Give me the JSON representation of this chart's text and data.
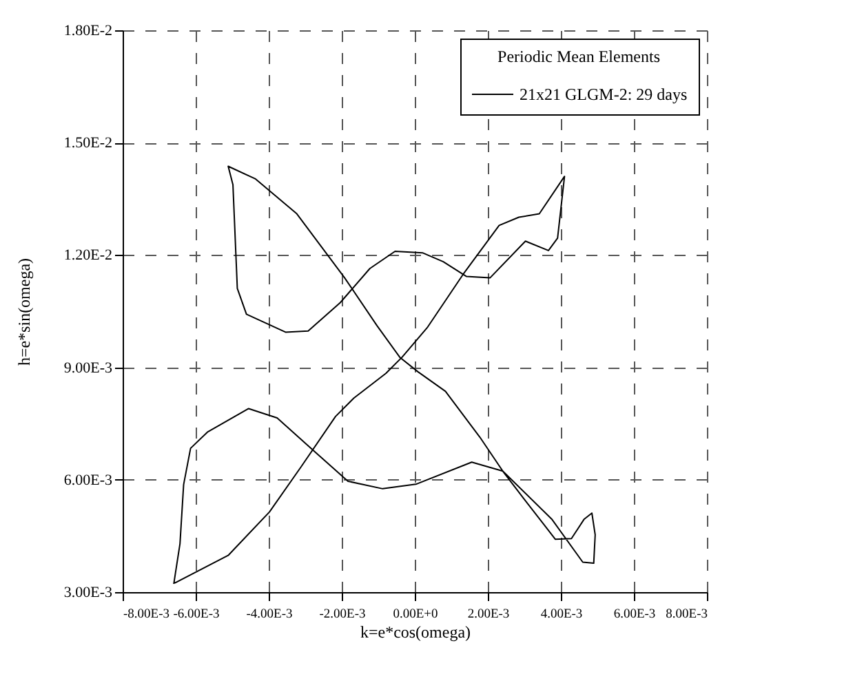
{
  "chart_data": {
    "type": "line",
    "xlabel": "k=e*cos(omega)",
    "ylabel": "h=e*sin(omega)",
    "legend_title": "Periodic Mean Elements",
    "legend": "top right",
    "grid": true,
    "xlim": [
      -0.008,
      0.008
    ],
    "ylim": [
      0.003,
      0.018
    ],
    "xticks": [
      {
        "value": -0.008,
        "label": "-8.00E-3"
      },
      {
        "value": -0.006,
        "label": "-6.00E-3"
      },
      {
        "value": -0.004,
        "label": "-4.00E-3"
      },
      {
        "value": -0.002,
        "label": "-2.00E-3"
      },
      {
        "value": 0,
        "label": "0.00E+0"
      },
      {
        "value": 0.002,
        "label": "2.00E-3"
      },
      {
        "value": 0.004,
        "label": "4.00E-3"
      },
      {
        "value": 0.006,
        "label": "6.00E-3"
      },
      {
        "value": 0.008,
        "label": "8.00E-3"
      }
    ],
    "yticks": [
      {
        "value": 0.003,
        "label": "3.00E-3"
      },
      {
        "value": 0.006,
        "label": "6.00E-3"
      },
      {
        "value": 0.009,
        "label": "9.00E-3"
      },
      {
        "value": 0.012,
        "label": "1.20E-2"
      },
      {
        "value": 0.015,
        "label": "1.50E-2"
      },
      {
        "value": 0.018,
        "label": "1.80E-2"
      }
    ],
    "series": [
      {
        "name": "21x21 GLGM-2: 29 days",
        "color": "#000000",
        "x": [
          -0.0066,
          -0.00643,
          -0.00633,
          -0.00614,
          -0.00568,
          -0.00455,
          -0.00377,
          -0.00273,
          -0.00183,
          -0.00088,
          3e-05,
          0.00156,
          0.00241,
          0.00375,
          0.0046,
          0.0049,
          0.00494,
          0.00485,
          0.00464,
          0.00429,
          0.00385,
          0.00303,
          0.00241,
          0.00178,
          0.00084,
          9e-05,
          -0.00041,
          -0.00104,
          -0.00192,
          -0.00323,
          -0.00436,
          -0.00511,
          -0.00498,
          -0.00486,
          -0.00461,
          -0.00354,
          -0.00292,
          -0.00204,
          -0.00123,
          -0.00054,
          0.00021,
          0.00078,
          0.00141,
          0.00206,
          0.00303,
          0.00366,
          0.00391,
          0.0041,
          0.00341,
          0.00285,
          0.00231,
          0.00132,
          0.00034,
          -0.00035,
          -0.00079,
          -0.00167,
          -0.00217,
          -0.00311,
          -0.00398,
          -0.00511,
          -0.00658
        ],
        "values": [
          0.00322,
          0.00429,
          0.00587,
          0.00684,
          0.00727,
          0.0079,
          0.00765,
          0.00674,
          0.00596,
          0.00576,
          0.00588,
          0.00647,
          0.00623,
          0.00495,
          0.0038,
          0.00377,
          0.00453,
          0.00511,
          0.00495,
          0.00443,
          0.00441,
          0.00544,
          0.00623,
          0.00714,
          0.00836,
          0.00888,
          0.00927,
          0.01012,
          0.01139,
          0.0131,
          0.01403,
          0.01437,
          0.01388,
          0.01111,
          0.01042,
          0.00994,
          0.00997,
          0.01073,
          0.01164,
          0.0121,
          0.01206,
          0.01182,
          0.01143,
          0.01139,
          0.01237,
          0.01212,
          0.01245,
          0.0141,
          0.0131,
          0.01301,
          0.01279,
          0.01148,
          0.01006,
          0.00927,
          0.00884,
          0.00818,
          0.00769,
          0.00635,
          0.00514,
          0.00398,
          0.00324
        ]
      }
    ]
  }
}
